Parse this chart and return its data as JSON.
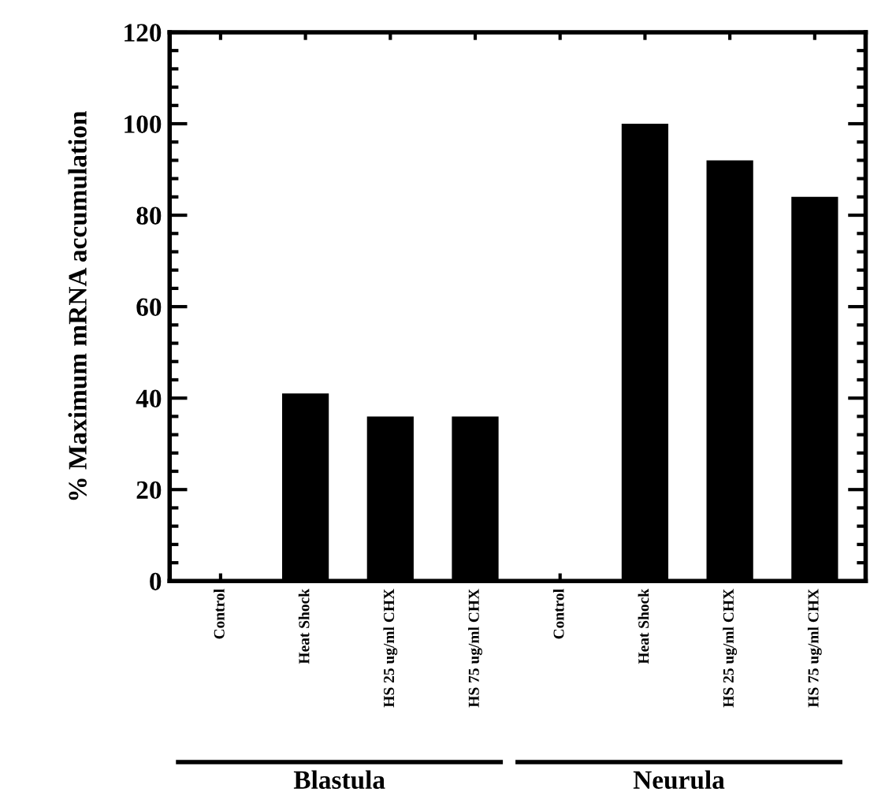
{
  "chart_data": {
    "type": "bar",
    "ylabel": "% Maximum mRNA accumulation",
    "categories": [
      "Control",
      "Heat Shock",
      "HS 25 ug/ml CHX",
      "HS 75 ug/ml CHX",
      "Control",
      "Heat Shock",
      "HS 25 ug/ml CHX",
      "HS 75 ug/ml CHX"
    ],
    "values": [
      0,
      41,
      36,
      36,
      0,
      100,
      92,
      84
    ],
    "color": "#000000",
    "ylim": [
      0,
      120
    ],
    "yticks": [
      0,
      20,
      40,
      60,
      80,
      100,
      120
    ],
    "grid": false,
    "annotations": [
      "Blastula",
      "Neurula"
    ]
  }
}
